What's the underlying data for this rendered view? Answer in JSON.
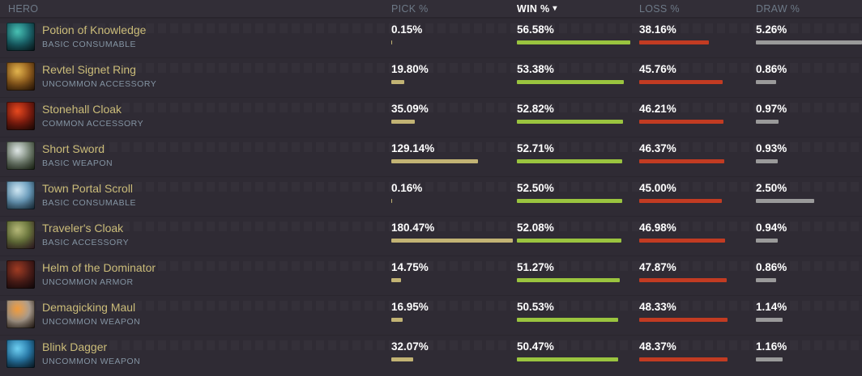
{
  "colors": {
    "background": "#2f2b34",
    "header_text": "#6d7987",
    "sorted_header_text": "#ffffff",
    "item_name": "#cbbc79",
    "category_text": "#8494a3",
    "value_text": "#ffffff",
    "pick_bar": "#c2b374",
    "win_bar": "#9ac43f",
    "loss_bar": "#c23b22",
    "draw_bar": "#9a9a9a"
  },
  "table": {
    "columns": {
      "hero": "HERO",
      "pick": "PICK %",
      "win": "WIN %",
      "loss": "LOSS %",
      "draw": "DRAW %"
    },
    "sorted_column": "win",
    "sort_indicator": "▾",
    "rows": [
      {
        "name": "Potion of Knowledge",
        "category": "BASIC CONSUMABLE",
        "icon": "potion-of-knowledge-icon",
        "icon_colors": [
          "#49c2b4",
          "#1d6d74",
          "#0d2329"
        ],
        "pick": "0.15%",
        "win": "56.58%",
        "loss": "38.16%",
        "draw": "5.26%"
      },
      {
        "name": "Revtel Signet Ring",
        "category": "UNCOMMON ACCESSORY",
        "icon": "revtel-signet-ring-icon",
        "icon_colors": [
          "#e3b54e",
          "#9a6420",
          "#3a1f0a"
        ],
        "pick": "19.80%",
        "win": "53.38%",
        "loss": "45.76%",
        "draw": "0.86%"
      },
      {
        "name": "Stonehall Cloak",
        "category": "COMMON ACCESSORY",
        "icon": "stonehall-cloak-icon",
        "icon_colors": [
          "#e84a1f",
          "#8a1f10",
          "#2a0d08"
        ],
        "pick": "35.09%",
        "win": "52.82%",
        "loss": "46.21%",
        "draw": "0.97%"
      },
      {
        "name": "Short Sword",
        "category": "BASIC WEAPON",
        "icon": "short-sword-icon",
        "icon_colors": [
          "#dfe6e6",
          "#7c8a7a",
          "#27331f"
        ],
        "pick": "129.14%",
        "win": "52.71%",
        "loss": "46.37%",
        "draw": "0.93%"
      },
      {
        "name": "Town Portal Scroll",
        "category": "BASIC CONSUMABLE",
        "icon": "town-portal-scroll-icon",
        "icon_colors": [
          "#cfe6f2",
          "#6fa3c4",
          "#223c4e"
        ],
        "pick": "0.16%",
        "win": "52.50%",
        "loss": "45.00%",
        "draw": "2.50%"
      },
      {
        "name": "Traveler's Cloak",
        "category": "BASIC ACCESSORY",
        "icon": "travelers-cloak-icon",
        "icon_colors": [
          "#b5b878",
          "#6e7a3f",
          "#40242e"
        ],
        "pick": "180.47%",
        "win": "52.08%",
        "loss": "46.98%",
        "draw": "0.94%"
      },
      {
        "name": "Helm of the Dominator",
        "category": "UNCOMMON ARMOR",
        "icon": "helm-of-the-dominator-icon",
        "icon_colors": [
          "#a03c23",
          "#55201a",
          "#1c0d10"
        ],
        "pick": "14.75%",
        "win": "51.27%",
        "loss": "47.87%",
        "draw": "0.86%"
      },
      {
        "name": "Demagicking Maul",
        "category": "UNCOMMON WEAPON",
        "icon": "demagicking-maul-icon",
        "icon_colors": [
          "#f29b3a",
          "#b3a494",
          "#33261e"
        ],
        "pick": "16.95%",
        "win": "50.53%",
        "loss": "48.33%",
        "draw": "1.14%"
      },
      {
        "name": "Blink Dagger",
        "category": "UNCOMMON WEAPON",
        "icon": "blink-dagger-icon",
        "icon_colors": [
          "#6fd0f2",
          "#2a7fb0",
          "#0d2738"
        ],
        "pick": "32.07%",
        "win": "50.47%",
        "loss": "48.37%",
        "draw": "1.16%"
      }
    ]
  }
}
